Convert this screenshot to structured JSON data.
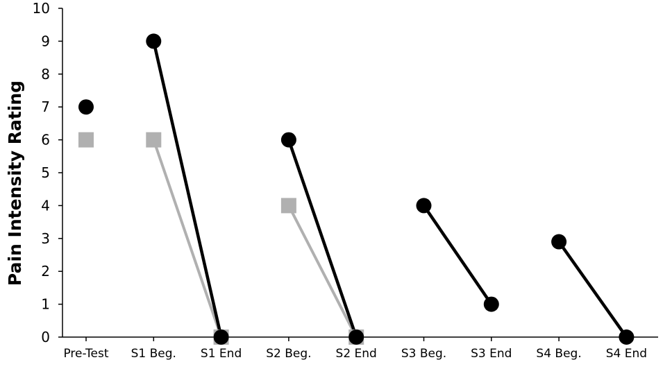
{
  "chart_data": {
    "type": "line",
    "title": "",
    "xlabel": "",
    "ylabel": "Pain Intensity Rating",
    "ylim": [
      0,
      10
    ],
    "yticks": [
      0,
      1,
      2,
      3,
      4,
      5,
      6,
      7,
      8,
      9,
      10
    ],
    "grid": false,
    "categories": [
      "Pre-Test",
      "S1 Beg.",
      "S1 End",
      "S2 Beg.",
      "S2 End",
      "S3 Beg.",
      "S3 End",
      "S4 Beg.",
      "S4 End"
    ],
    "series": [
      {
        "marker": "circle",
        "color": "#000000",
        "points": [
          {
            "x": "Pre-Test",
            "y": 7
          },
          {
            "x": "S1 Beg.",
            "y": 9
          },
          {
            "x": "S1 End",
            "y": 0
          },
          {
            "x": "S2 Beg.",
            "y": 6
          },
          {
            "x": "S2 End",
            "y": 0
          },
          {
            "x": "S3 Beg.",
            "y": 4
          },
          {
            "x": "S3 End",
            "y": 1
          },
          {
            "x": "S4 Beg.",
            "y": 2.9
          },
          {
            "x": "S4 End",
            "y": 0
          }
        ],
        "segments": [
          [
            "S1 Beg.",
            "S1 End"
          ],
          [
            "S2 Beg.",
            "S2 End"
          ],
          [
            "S3 Beg.",
            "S3 End"
          ],
          [
            "S4 Beg.",
            "S4 End"
          ]
        ]
      },
      {
        "marker": "square",
        "color": "#b0b0b0",
        "points": [
          {
            "x": "Pre-Test",
            "y": 6
          },
          {
            "x": "S1 Beg.",
            "y": 6
          },
          {
            "x": "S1 End",
            "y": 0
          },
          {
            "x": "S2 Beg.",
            "y": 4
          },
          {
            "x": "S2 End",
            "y": 0
          }
        ],
        "segments": [
          [
            "S1 Beg.",
            "S1 End"
          ],
          [
            "S2 Beg.",
            "S2 End"
          ]
        ]
      }
    ]
  }
}
